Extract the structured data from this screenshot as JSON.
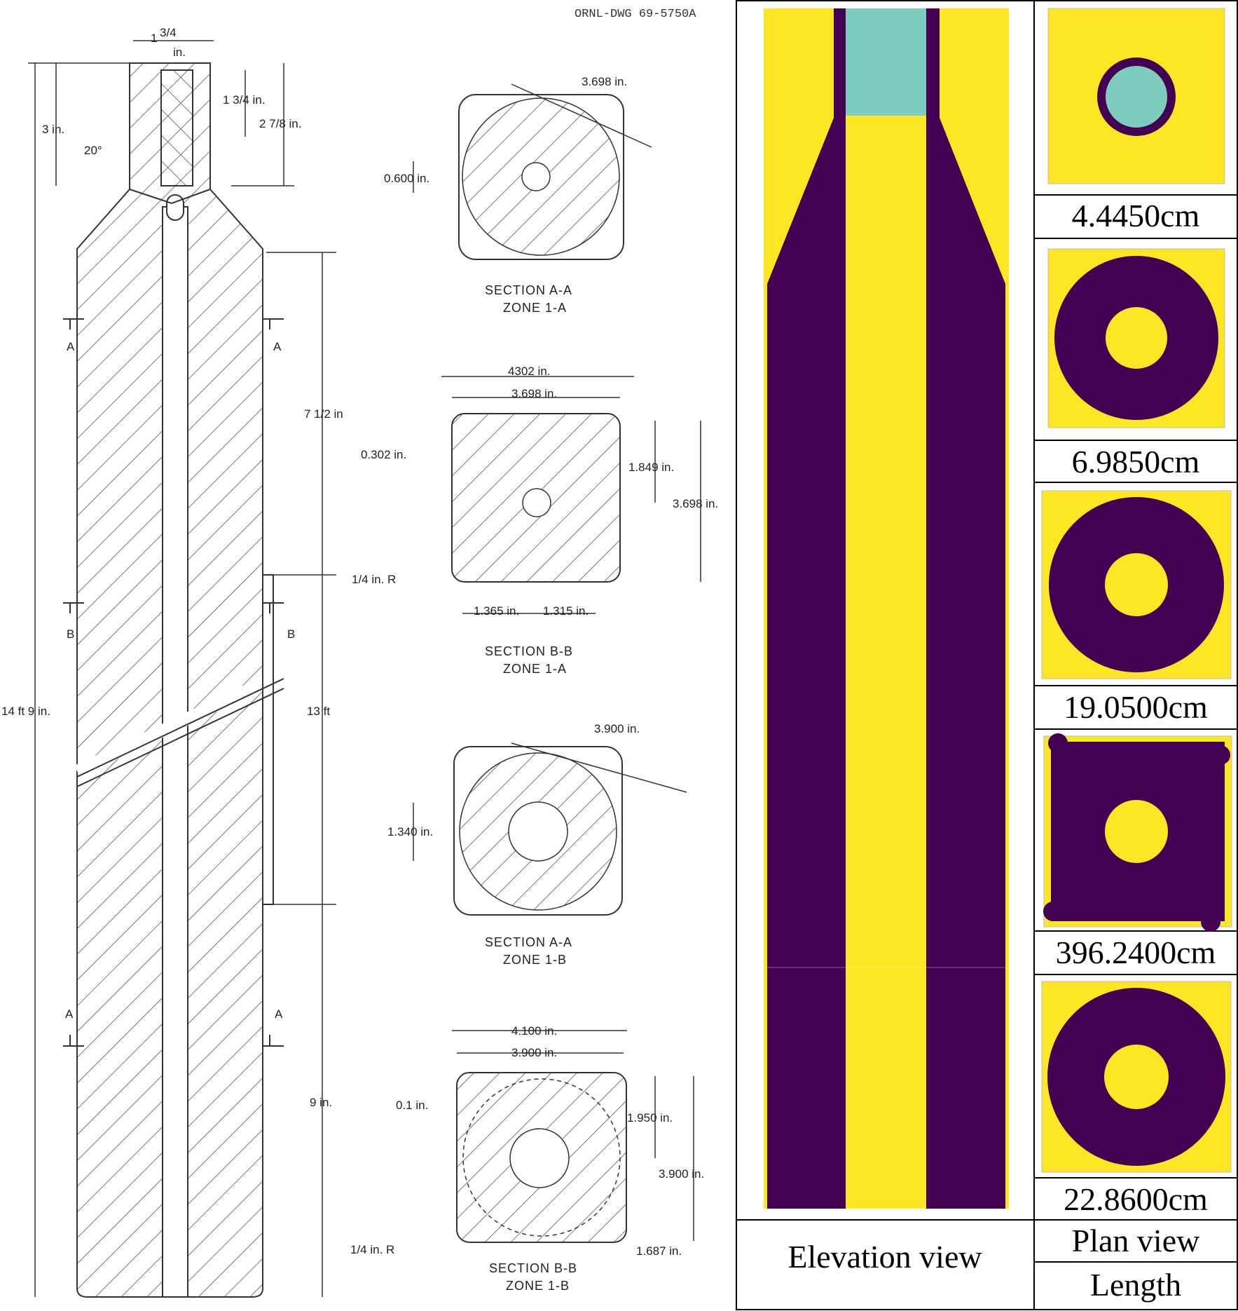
{
  "drawing": {
    "dwg_number": "ORNL-DWG 69-5750A",
    "dims": {
      "top_width_whole": "1",
      "top_width_frac": "3/4",
      "top_width_unit": "in.",
      "d_3in": "3 in.",
      "d_1_3_4": "1 3/4 in.",
      "d_2_7_8": "2 7/8 in.",
      "angle": "20°",
      "d_7_1_2": "7 1/2 in",
      "d_13ft": "13 ft",
      "d_9in": "9 in.",
      "d_14ft9": "14 ft 9 in."
    },
    "cut_marks": [
      "A",
      "A",
      "B",
      "B",
      "A",
      "A"
    ],
    "sections": [
      {
        "title": "SECTION A-A",
        "zone": "ZONE 1-A",
        "labels": [
          "3.698 in.",
          "0.600 in."
        ]
      },
      {
        "title": "SECTION B-B",
        "zone": "ZONE 1-A",
        "labels": [
          "4302 in.",
          "3.698 in.",
          "0.302 in.",
          "1.849 in.",
          "3.698 in.",
          "1/4 in. R",
          "1.365 in.",
          "1.315 in."
        ]
      },
      {
        "title": "SECTION A-A",
        "zone": "ZONE 1-B",
        "labels": [
          "3.900 in.",
          "1.340 in."
        ]
      },
      {
        "title": "SECTION B-B",
        "zone": "ZONE 1-B",
        "labels": [
          "4.100 in.",
          "3.900 in.",
          "0.1 in.",
          "1.950 in.",
          "3.900 in.",
          "1/4 in. R",
          "1.687 in."
        ]
      }
    ]
  },
  "model": {
    "colors": {
      "graphite": "#440154",
      "void": "#fde725",
      "teal": "#7ecebf"
    },
    "plan_lengths": [
      "4.4450cm",
      "6.9850cm",
      "19.0500cm",
      "396.2400cm",
      "22.8600cm"
    ],
    "elevation_label": "Elevation view",
    "plan_label": "Plan view",
    "length_label": "Length"
  }
}
